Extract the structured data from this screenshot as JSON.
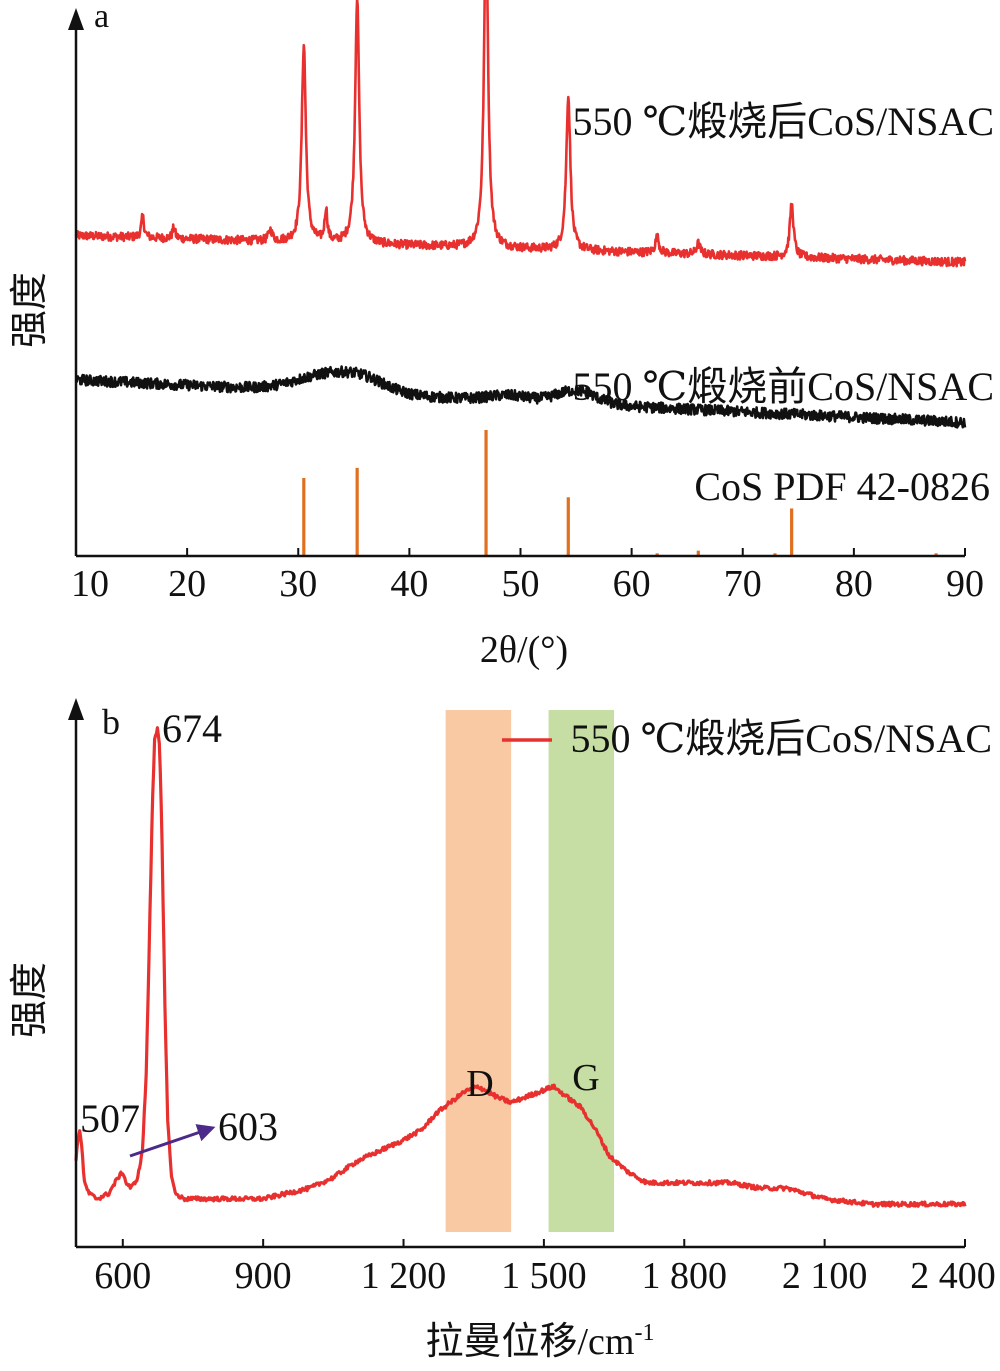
{
  "chart_data": [
    {
      "type": "line",
      "panel_label": "a",
      "xlabel": "2θ/(°)",
      "ylabel": "强度",
      "xlim": [
        10,
        90
      ],
      "x_ticks": [
        10,
        20,
        30,
        40,
        50,
        60,
        70,
        80,
        90
      ],
      "y_scale": "relative intensity (no tick labels)",
      "series": [
        {
          "name": "550 ℃煅烧后CoS/NSAC",
          "color": "#e8302f",
          "baseline": 0.6,
          "baseline_end": 0.55,
          "noise": 0.008,
          "peaks": [
            {
              "x": 16.0,
              "h": 0.04,
              "w": 0.15
            },
            {
              "x": 18.8,
              "h": 0.02,
              "w": 0.15
            },
            {
              "x": 27.5,
              "h": 0.02,
              "w": 0.2
            },
            {
              "x": 30.5,
              "h": 0.37,
              "w": 0.22
            },
            {
              "x": 32.5,
              "h": 0.06,
              "w": 0.15
            },
            {
              "x": 35.3,
              "h": 0.46,
              "w": 0.22
            },
            {
              "x": 46.9,
              "h": 0.61,
              "w": 0.22
            },
            {
              "x": 54.3,
              "h": 0.29,
              "w": 0.22
            },
            {
              "x": 62.3,
              "h": 0.03,
              "w": 0.2
            },
            {
              "x": 66.0,
              "h": 0.02,
              "w": 0.2
            },
            {
              "x": 74.4,
              "h": 0.1,
              "w": 0.2
            }
          ]
        },
        {
          "name": "550 ℃煅烧前CoS/NSAC",
          "color": "#111111",
          "baseline": 0.33,
          "baseline_end": 0.25,
          "noise": 0.01,
          "humps": [
            {
              "x": 32.5,
              "h": 0.03,
              "w": 4
            },
            {
              "x": 36.0,
              "h": 0.02,
              "w": 3
            },
            {
              "x": 55.0,
              "h": 0.025,
              "w": 2.5
            },
            {
              "x": 49.0,
              "h": 0.01,
              "w": 2.5
            }
          ]
        }
      ],
      "reference": {
        "name": "CoS PDF 42-0826",
        "color": "#e07020",
        "lines": [
          {
            "x": 30.5,
            "y": 0.146
          },
          {
            "x": 35.3,
            "y": 0.165
          },
          {
            "x": 46.9,
            "y": 0.236
          },
          {
            "x": 54.3,
            "y": 0.11
          },
          {
            "x": 62.3,
            "y": 0.005
          },
          {
            "x": 66.0,
            "y": 0.01
          },
          {
            "x": 72.9,
            "y": 0.005
          },
          {
            "x": 74.4,
            "y": 0.089
          },
          {
            "x": 87.4,
            "y": 0.005
          }
        ]
      },
      "series_labels": [
        "550 ℃煅烧后CoS/NSAC",
        "550 ℃煅烧前CoS/NSAC",
        "CoS PDF 42-0826"
      ]
    },
    {
      "type": "line",
      "panel_label": "b",
      "xlabel": "拉曼位移/cm",
      "xlabel_superscript": "-1",
      "ylabel": "强度",
      "xlim": [
        500,
        2400
      ],
      "x_ticks": [
        600,
        900,
        1200,
        1500,
        1800,
        2100,
        2400
      ],
      "x_tick_labels": [
        "600",
        "900",
        "1 200",
        "1 500",
        "1 800",
        "2 100",
        "2 400"
      ],
      "y_scale": "relative intensity (no tick labels)",
      "legend": "550 ℃煅烧后CoS/NSAC",
      "legend_position": "top-right",
      "series": [
        {
          "name": "550 ℃煅烧后CoS/NSAC",
          "color": "#e8302f",
          "points": [
            [
              500,
              0.16
            ],
            [
              504,
              0.2
            ],
            [
              508,
              0.22
            ],
            [
              512,
              0.19
            ],
            [
              518,
              0.12
            ],
            [
              528,
              0.1
            ],
            [
              545,
              0.09
            ],
            [
              570,
              0.1
            ],
            [
              590,
              0.13
            ],
            [
              600,
              0.14
            ],
            [
              607,
              0.12
            ],
            [
              618,
              0.11
            ],
            [
              632,
              0.13
            ],
            [
              642,
              0.18
            ],
            [
              650,
              0.32
            ],
            [
              657,
              0.58
            ],
            [
              663,
              0.82
            ],
            [
              668,
              0.95
            ],
            [
              674,
              0.97
            ],
            [
              679,
              0.93
            ],
            [
              684,
              0.75
            ],
            [
              690,
              0.45
            ],
            [
              696,
              0.24
            ],
            [
              703,
              0.14
            ],
            [
              712,
              0.1
            ],
            [
              730,
              0.09
            ],
            [
              760,
              0.09
            ],
            [
              800,
              0.09
            ],
            [
              850,
              0.09
            ],
            [
              900,
              0.09
            ],
            [
              950,
              0.1
            ],
            [
              1000,
              0.11
            ],
            [
              1050,
              0.13
            ],
            [
              1100,
              0.16
            ],
            [
              1150,
              0.18
            ],
            [
              1200,
              0.2
            ],
            [
              1240,
              0.22
            ],
            [
              1270,
              0.25
            ],
            [
              1300,
              0.27
            ],
            [
              1330,
              0.29
            ],
            [
              1360,
              0.3
            ],
            [
              1380,
              0.29
            ],
            [
              1400,
              0.28
            ],
            [
              1430,
              0.27
            ],
            [
              1460,
              0.28
            ],
            [
              1490,
              0.29
            ],
            [
              1520,
              0.3
            ],
            [
              1550,
              0.28
            ],
            [
              1580,
              0.26
            ],
            [
              1610,
              0.22
            ],
            [
              1640,
              0.17
            ],
            [
              1680,
              0.14
            ],
            [
              1720,
              0.12
            ],
            [
              1780,
              0.12
            ],
            [
              1840,
              0.12
            ],
            [
              1900,
              0.12
            ],
            [
              1960,
              0.11
            ],
            [
              2020,
              0.11
            ],
            [
              2100,
              0.09
            ],
            [
              2200,
              0.08
            ],
            [
              2300,
              0.08
            ],
            [
              2400,
              0.08
            ]
          ]
        }
      ],
      "bands": [
        {
          "label": "D",
          "x_from": 1290,
          "x_to": 1430,
          "color": "#f9c9a3"
        },
        {
          "label": "G",
          "x_from": 1510,
          "x_to": 1650,
          "color": "#c6dea4"
        }
      ],
      "annotations": [
        "674",
        "507",
        "603"
      ],
      "arrow": {
        "from_x": 615,
        "to_x": 795,
        "color": "#4b2a8a"
      }
    }
  ]
}
